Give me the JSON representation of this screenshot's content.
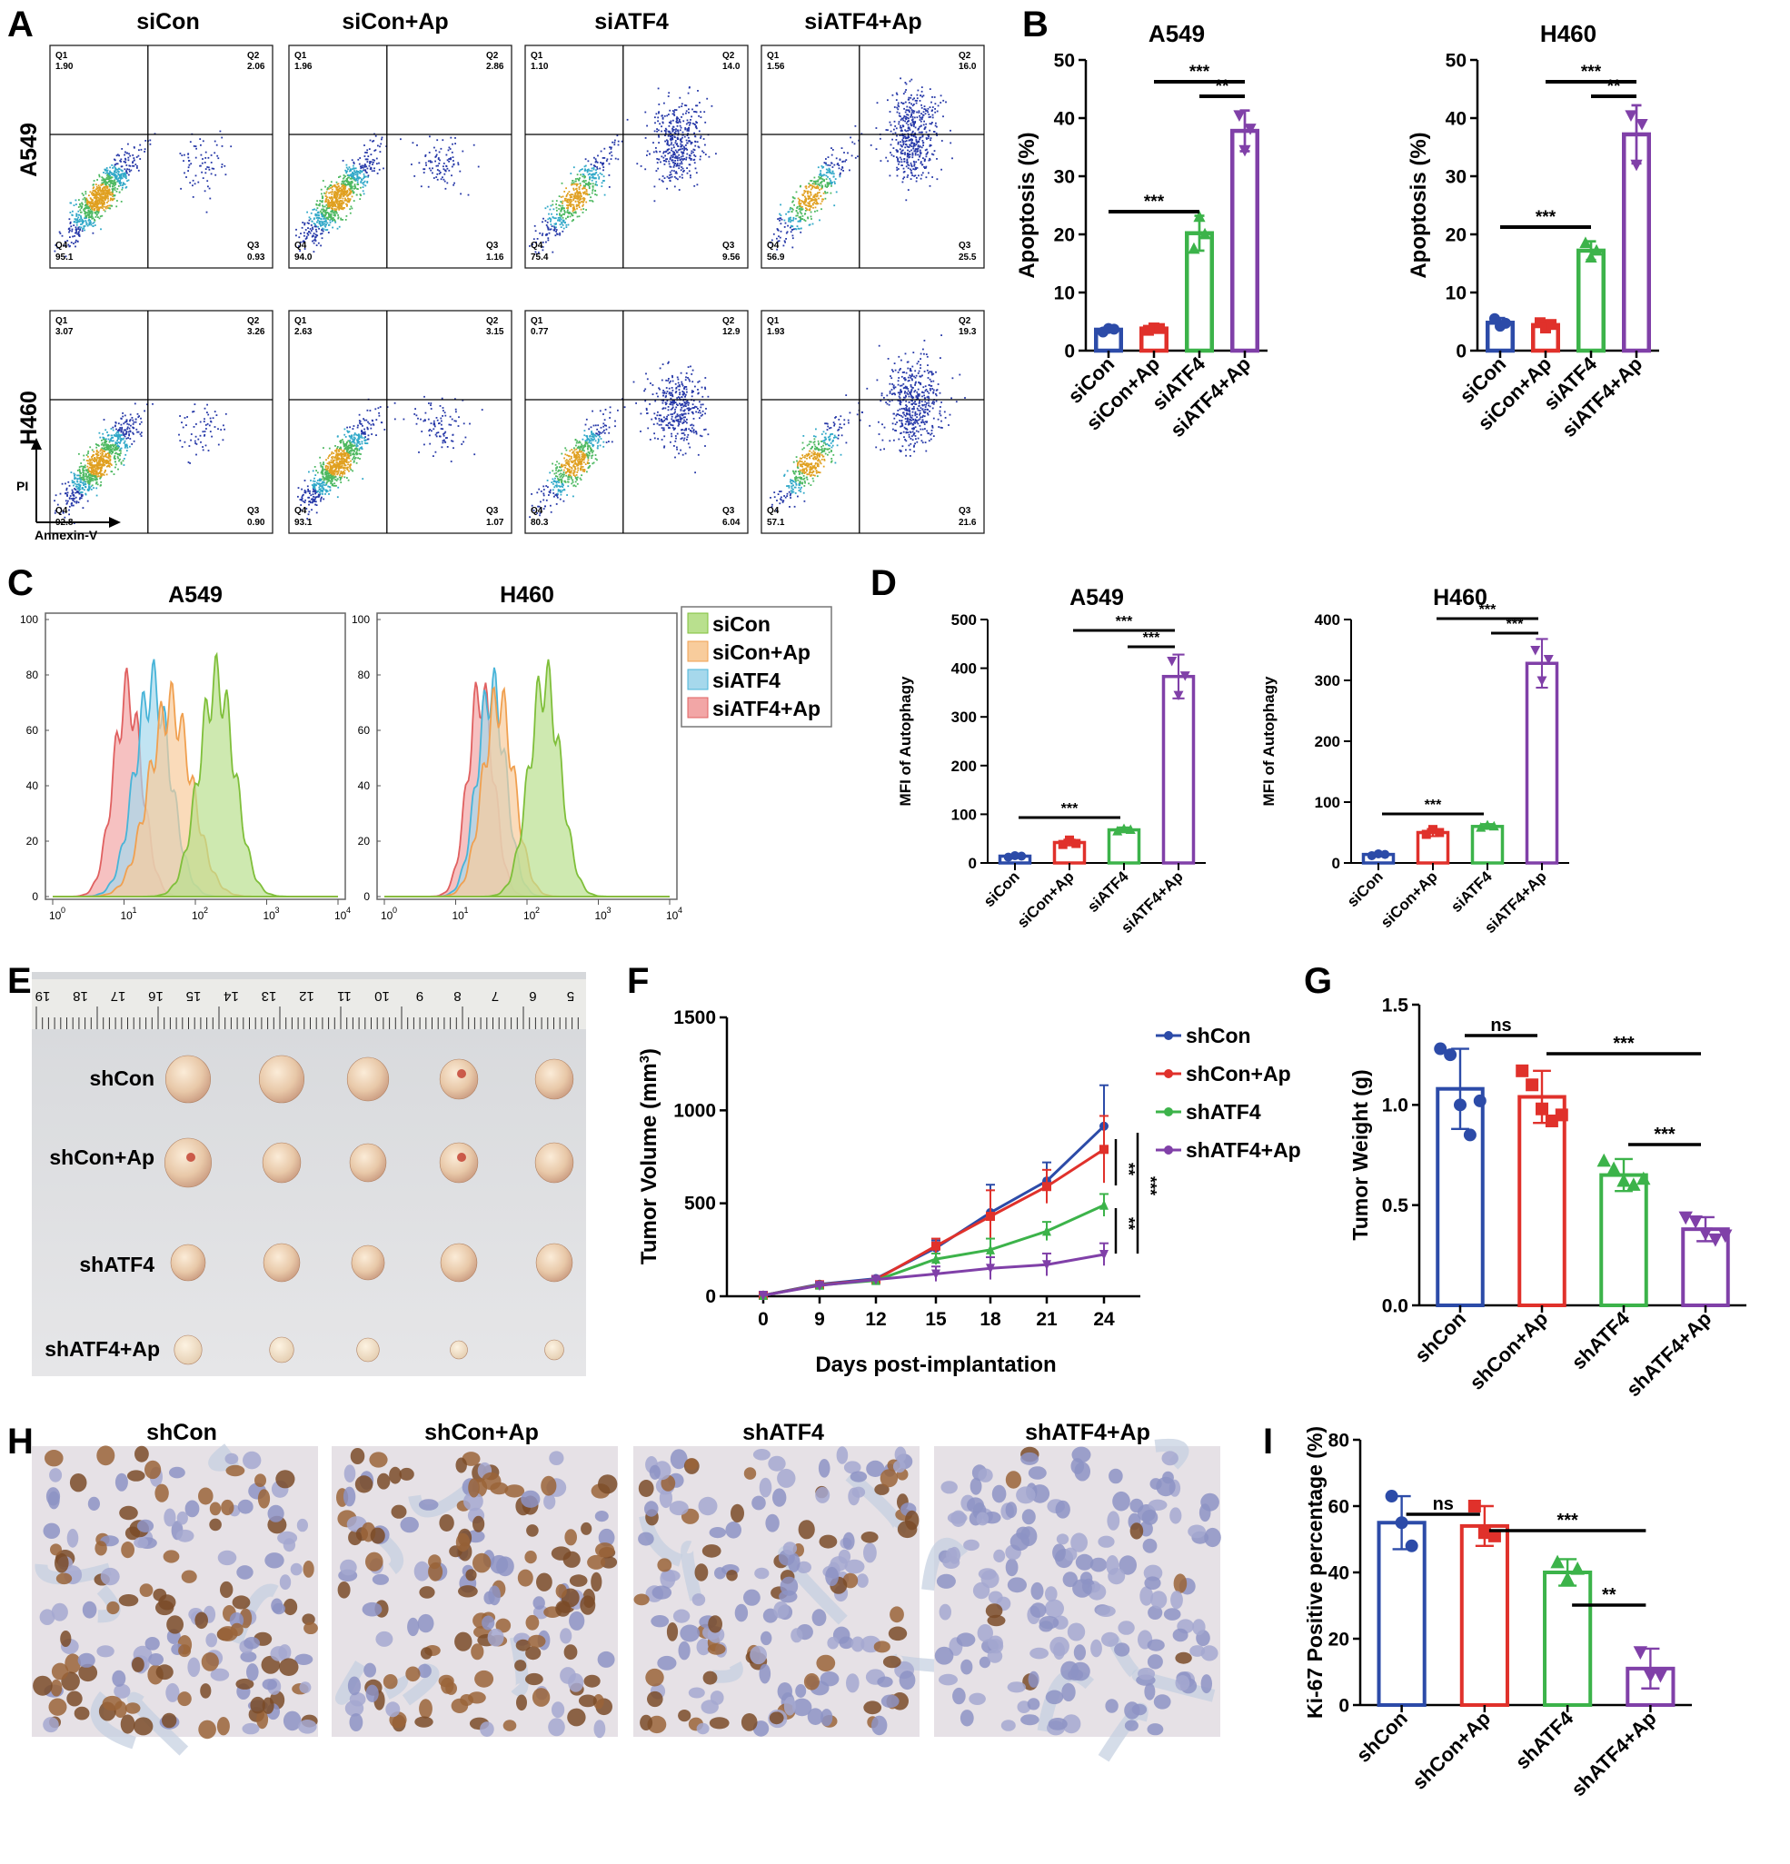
{
  "panels": {
    "A": {
      "letter": "A",
      "columns": [
        "siCon",
        "siCon+Ap",
        "siATF4",
        "siATF4+Ap"
      ],
      "rows": [
        "A549",
        "H460"
      ],
      "axis_y": "PI",
      "axis_x": "Annexin-V",
      "quadrant_names": [
        "Q1",
        "Q2",
        "Q3",
        "Q4"
      ],
      "plots": [
        {
          "q1": "1.90",
          "q2": "2.06",
          "q3": "0.93",
          "q4": "95.1"
        },
        {
          "q1": "1.96",
          "q2": "2.86",
          "q3": "1.16",
          "q4": "94.0"
        },
        {
          "q1": "1.10",
          "q2": "14.0",
          "q3": "9.56",
          "q4": "75.4"
        },
        {
          "q1": "1.56",
          "q2": "16.0",
          "q3": "25.5",
          "q4": "56.9"
        },
        {
          "q1": "3.07",
          "q2": "3.26",
          "q3": "0.90",
          "q4": "92.8"
        },
        {
          "q1": "2.63",
          "q2": "3.15",
          "q3": "1.07",
          "q4": "93.1"
        },
        {
          "q1": "0.77",
          "q2": "12.9",
          "q3": "6.04",
          "q4": "80.3"
        },
        {
          "q1": "1.93",
          "q2": "19.3",
          "q3": "21.6",
          "q4": "57.1"
        }
      ]
    },
    "B": {
      "letter": "B"
    },
    "C": {
      "letter": "C",
      "legend": [
        "siCon",
        "siCon+Ap",
        "siATF4",
        "siATF4+Ap"
      ]
    },
    "D": {
      "letter": "D"
    },
    "E": {
      "letter": "E",
      "rows": [
        "shCon",
        "shCon+Ap",
        "shATF4",
        "shATF4+Ap"
      ],
      "ruler_numbers": [
        "19",
        "18",
        "17",
        "16",
        "15",
        "14",
        "13",
        "12",
        "11",
        "10",
        "9",
        "8",
        "7",
        "6",
        "5"
      ]
    },
    "F": {
      "letter": "F"
    },
    "G": {
      "letter": "G"
    },
    "H": {
      "letter": "H",
      "columns": [
        "shCon",
        "shCon+Ap",
        "shATF4",
        "shATF4+Ap"
      ]
    },
    "I": {
      "letter": "I"
    }
  },
  "colors": {
    "blue": "#2c4ba8",
    "red": "#e0312b",
    "green": "#3cb34a",
    "purple": "#8040a8"
  },
  "chart_data": [
    {
      "id": "B1",
      "type": "bar",
      "title": "A549",
      "ylabel": "Apoptosis (%)",
      "categories": [
        "siCon",
        "siCon+Ap",
        "siATF4",
        "siATF4+Ap"
      ],
      "values": [
        3.6,
        3.8,
        20.2,
        37.8
      ],
      "errors": [
        0.4,
        0.4,
        3.0,
        3.5
      ],
      "points": [
        [
          3.2,
          3.8,
          3.7
        ],
        [
          3.5,
          3.9,
          3.8
        ],
        [
          17.5,
          23.0,
          20.0
        ],
        [
          40.5,
          34.5,
          38.2
        ]
      ],
      "ylim": [
        0,
        50
      ],
      "yticks": [
        "0",
        "10",
        "20",
        "30",
        "40",
        "50"
      ],
      "significance": [
        {
          "from": 0,
          "to": 2,
          "label": "***"
        },
        {
          "from": 1,
          "to": 3,
          "label": "***"
        },
        {
          "from": 2,
          "to": 3,
          "label": "**"
        }
      ]
    },
    {
      "id": "B2",
      "type": "bar",
      "title": "H460",
      "ylabel": "Apoptosis (%)",
      "categories": [
        "siCon",
        "siCon+Ap",
        "siATF4",
        "siATF4+Ap"
      ],
      "values": [
        4.8,
        4.4,
        17.2,
        37.2
      ],
      "errors": [
        0.8,
        0.7,
        1.6,
        5.0
      ],
      "points": [
        [
          5.5,
          4.2,
          4.7
        ],
        [
          4.8,
          3.9,
          4.5
        ],
        [
          18.5,
          16.0,
          17.2
        ],
        [
          40.5,
          32.0,
          39.0
        ]
      ],
      "ylim": [
        0,
        50
      ],
      "yticks": [
        "0",
        "10",
        "20",
        "30",
        "40",
        "50"
      ],
      "significance": [
        {
          "from": 0,
          "to": 2,
          "label": "***"
        },
        {
          "from": 1,
          "to": 3,
          "label": "***"
        },
        {
          "from": 2,
          "to": 3,
          "label": "**"
        }
      ]
    },
    {
      "id": "C1",
      "type": "area",
      "title": "A549",
      "yticks": [
        "0",
        "20",
        "40",
        "60",
        "80",
        "100"
      ],
      "xticks": [
        "10",
        "10",
        "10",
        "10",
        "10"
      ],
      "xtick_exps": [
        "0",
        "1",
        "2",
        "3",
        "4"
      ],
      "series": [
        {
          "name": "siATF4+Ap",
          "color": "#e06060",
          "fill": "#f2a6a6",
          "peak": 1.05,
          "width": 0.2,
          "height": 83
        },
        {
          "name": "siATF4",
          "color": "#48b4d8",
          "fill": "#a6d8ec",
          "peak": 1.4,
          "width": 0.25,
          "height": 86
        },
        {
          "name": "siCon+Ap",
          "color": "#f0a050",
          "fill": "#f8cc9c",
          "peak": 1.65,
          "width": 0.3,
          "height": 78
        },
        {
          "name": "siCon",
          "color": "#7fbf3a",
          "fill": "#b9e08e",
          "peak": 2.3,
          "width": 0.25,
          "height": 88
        }
      ]
    },
    {
      "id": "C2",
      "type": "area",
      "title": "H460",
      "yticks": [
        "0",
        "20",
        "40",
        "60",
        "80",
        "100"
      ],
      "xticks": [
        "10",
        "10",
        "10",
        "10",
        "10"
      ],
      "xtick_exps": [
        "0",
        "1",
        "2",
        "3",
        "4"
      ],
      "series": [
        {
          "name": "siATF4+Ap",
          "color": "#e06060",
          "fill": "#f2a6a6",
          "peak": 1.35,
          "width": 0.18,
          "height": 84
        },
        {
          "name": "siATF4",
          "color": "#48b4d8",
          "fill": "#a6d8ec",
          "peak": 1.5,
          "width": 0.2,
          "height": 85
        },
        {
          "name": "siCon+Ap",
          "color": "#f0a050",
          "fill": "#f8cc9c",
          "peak": 1.6,
          "width": 0.22,
          "height": 80
        },
        {
          "name": "siCon",
          "color": "#7fbf3a",
          "fill": "#b9e08e",
          "peak": 2.25,
          "width": 0.22,
          "height": 88
        }
      ]
    },
    {
      "id": "D1",
      "type": "bar",
      "title": "A549",
      "ylabel": "MFI of Autophagy",
      "categories": [
        "siCon",
        "siCon+Ap",
        "siATF4",
        "siATF4+Ap"
      ],
      "values": [
        14,
        42,
        68,
        383
      ],
      "errors": [
        3,
        6,
        5,
        45
      ],
      "points": [
        [
          12,
          15,
          14
        ],
        [
          38,
          47,
          40
        ],
        [
          65,
          70,
          68
        ],
        [
          415,
          345,
          385
        ]
      ],
      "ylim": [
        0,
        500
      ],
      "yticks": [
        "0",
        "100",
        "200",
        "300",
        "400",
        "500"
      ],
      "significance": [
        {
          "from": 0,
          "to": 2,
          "label": "***"
        },
        {
          "from": 1,
          "to": 3,
          "label": "***"
        },
        {
          "from": 2,
          "to": 3,
          "label": "***"
        }
      ]
    },
    {
      "id": "D2",
      "type": "bar",
      "title": "H460",
      "ylabel": "MFI of Autophagy",
      "categories": [
        "siCon",
        "siCon+Ap",
        "siATF4",
        "siATF4+Ap"
      ],
      "values": [
        14,
        50,
        60,
        328
      ],
      "errors": [
        3,
        6,
        4,
        40
      ],
      "points": [
        [
          12,
          15,
          14
        ],
        [
          47,
          55,
          50
        ],
        [
          58,
          62,
          60
        ],
        [
          350,
          300,
          335
        ]
      ],
      "ylim": [
        0,
        400
      ],
      "yticks": [
        "0",
        "100",
        "200",
        "300",
        "400"
      ],
      "significance": [
        {
          "from": 0,
          "to": 2,
          "label": "***"
        },
        {
          "from": 1,
          "to": 3,
          "label": "***"
        },
        {
          "from": 2,
          "to": 3,
          "label": "***"
        }
      ]
    },
    {
      "id": "F",
      "type": "line",
      "xlabel": "Days post-implantation",
      "ylabel_pre": "Tumor Volume (mm",
      "ylabel_sup": "3",
      "ylabel_post": ")",
      "x": [
        0,
        9,
        12,
        15,
        18,
        21,
        24
      ],
      "ylim": [
        0,
        1500
      ],
      "yticks": [
        "0",
        "500",
        "1000",
        "1500"
      ],
      "series": [
        {
          "name": "shCon",
          "color": "#2c4ba8",
          "marker": "circle",
          "values": [
            5,
            65,
            95,
            260,
            450,
            620,
            915
          ],
          "errors": [
            3,
            10,
            15,
            40,
            150,
            100,
            220
          ]
        },
        {
          "name": "shCon+Ap",
          "color": "#e0312b",
          "marker": "square",
          "values": [
            5,
            62,
            90,
            270,
            430,
            590,
            790
          ],
          "errors": [
            3,
            10,
            15,
            40,
            140,
            90,
            180
          ]
        },
        {
          "name": "shATF4",
          "color": "#3cb34a",
          "marker": "triangle",
          "values": [
            5,
            60,
            85,
            200,
            250,
            350,
            490
          ],
          "errors": [
            3,
            10,
            12,
            30,
            60,
            50,
            60
          ]
        },
        {
          "name": "shATF4+Ap",
          "color": "#8040a8",
          "marker": "tri-down",
          "values": [
            5,
            58,
            90,
            120,
            150,
            170,
            225
          ],
          "errors": [
            3,
            10,
            12,
            40,
            60,
            60,
            60
          ]
        }
      ],
      "significance": [
        {
          "label": "**",
          "pair": "shCon+Ap vs shATF4"
        },
        {
          "label": "**",
          "pair": "shATF4 vs shATF4+Ap"
        },
        {
          "label": "***",
          "pair": "shCon+Ap vs shATF4+Ap"
        }
      ]
    },
    {
      "id": "G",
      "type": "bar",
      "ylabel": "Tumor Weight (g)",
      "categories": [
        "shCon",
        "shCon+Ap",
        "shATF4",
        "shATF4+Ap"
      ],
      "values": [
        1.08,
        1.04,
        0.65,
        0.38
      ],
      "errors": [
        0.2,
        0.13,
        0.08,
        0.06
      ],
      "points": [
        [
          1.28,
          1.25,
          1.0,
          0.85,
          1.02
        ],
        [
          1.17,
          1.1,
          0.98,
          0.92,
          0.95
        ],
        [
          0.72,
          0.68,
          0.62,
          0.6,
          0.63
        ],
        [
          0.44,
          0.42,
          0.36,
          0.33,
          0.35
        ]
      ],
      "ylim": [
        0,
        1.5
      ],
      "yticks": [
        "0.0",
        "0.5",
        "1.0",
        "1.5"
      ],
      "significance": [
        {
          "from": 0,
          "to": 1,
          "label": "ns"
        },
        {
          "from": 1,
          "to": 3,
          "label": "***"
        },
        {
          "from": 2,
          "to": 3,
          "label": "***"
        }
      ]
    },
    {
      "id": "I",
      "type": "bar",
      "ylabel": "Ki-67 Positive percentage (%)",
      "categories": [
        "shCon",
        "shCon+Ap",
        "shATF4",
        "shATF4+Ap"
      ],
      "values": [
        55,
        54,
        40,
        11
      ],
      "errors": [
        8,
        6,
        4,
        6
      ],
      "points": [
        [
          63,
          55,
          48
        ],
        [
          60,
          52,
          51
        ],
        [
          43,
          38,
          41
        ],
        [
          16,
          9,
          9
        ]
      ],
      "ylim": [
        0,
        80
      ],
      "yticks": [
        "0",
        "20",
        "40",
        "60",
        "80"
      ],
      "significance": [
        {
          "from": 0,
          "to": 1,
          "label": "ns"
        },
        {
          "from": 1,
          "to": 3,
          "label": "***"
        },
        {
          "from": 2,
          "to": 3,
          "label": "**"
        }
      ]
    }
  ]
}
